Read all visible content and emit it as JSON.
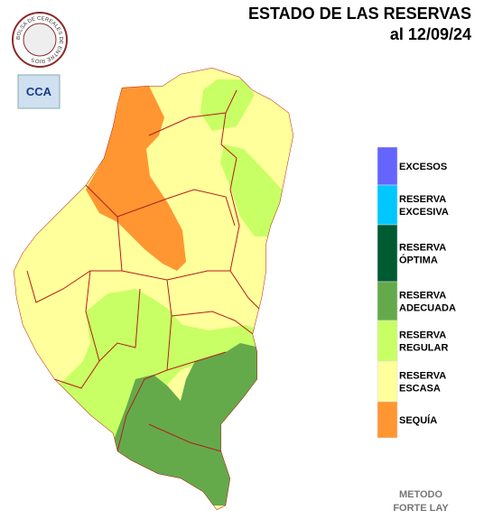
{
  "header": {
    "title": "ESTADO DE LAS RESERVAS",
    "date": "al 12/09/24"
  },
  "logos": {
    "bolsa": "BOLSA DE CEREALES DE ENTRE RIOS",
    "cca": "CCA"
  },
  "legend": [
    {
      "lines": [
        "EXCESOS"
      ],
      "color": "#6464ff"
    },
    {
      "lines": [
        "RESERVA",
        "EXCESIVA"
      ],
      "color": "#00c8ff"
    },
    {
      "lines": [
        "RESERVA",
        "ÓPTIMA"
      ],
      "color": "#005a32"
    },
    {
      "lines": [
        "RESERVA",
        "ADECUADA"
      ],
      "color": "#64aa4b"
    },
    {
      "lines": [
        "RESERVA",
        "REGULAR"
      ],
      "color": "#c8ff64"
    },
    {
      "lines": [
        "RESERVA",
        "ESCASA"
      ],
      "color": "#ffff9b"
    },
    {
      "lines": [
        "SEQUÍA"
      ],
      "color": "#ff9632"
    }
  ],
  "footer": [
    "METODO",
    "FORTE LAY"
  ]
}
